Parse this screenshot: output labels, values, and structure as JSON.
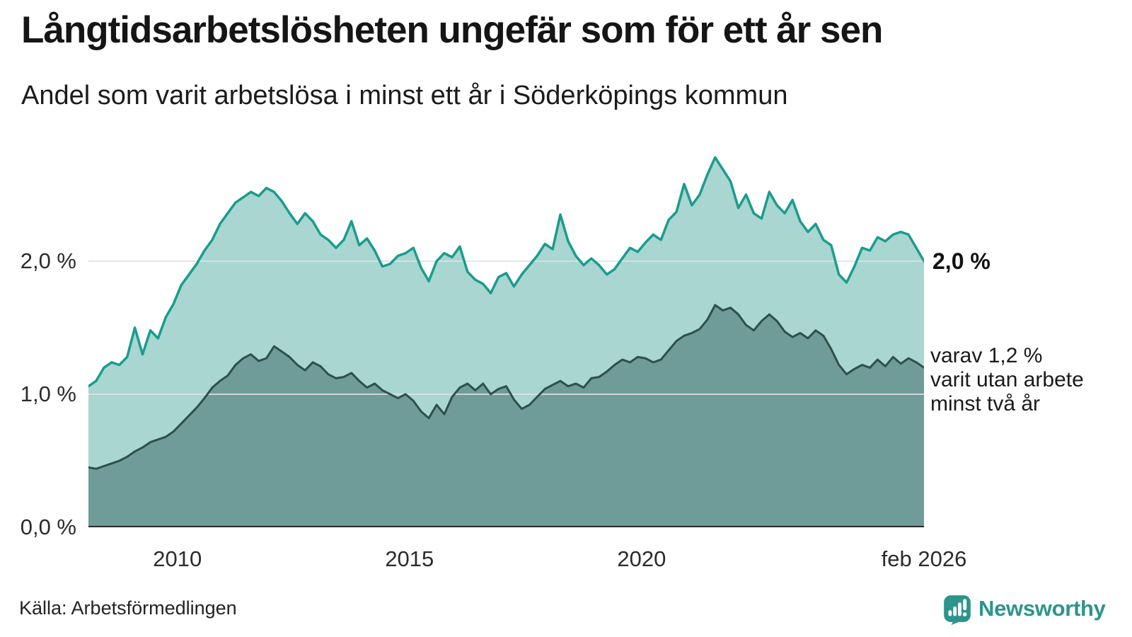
{
  "header": {
    "title": "Långtidsarbetslösheten ungefär som för ett år sen",
    "subtitle": "Andel som varit arbetslösa i minst ett år i Söderköpings kommun"
  },
  "y_axis": {
    "labels": [
      "2,0 %",
      "1,0 %",
      "0,0 %"
    ],
    "values": [
      2.0,
      1.0,
      0.0
    ]
  },
  "x_axis": {
    "ticks": [
      {
        "label": "2010",
        "month": 23
      },
      {
        "label": "2015",
        "month": 83
      },
      {
        "label": "2020",
        "month": 143
      },
      {
        "label": "feb 2026",
        "month": 216
      }
    ]
  },
  "annotations": {
    "series1_end_label": "2,0 %",
    "series2_lines": [
      "varav 1,2 %",
      "varit utan arbete",
      "minst två år"
    ]
  },
  "footer": {
    "source": "Källa: Arbetsförmedlingen",
    "logo_text": "Newsworthy"
  },
  "colors": {
    "series1_stroke": "#1a9c8f",
    "series1_fill": "#a9d6d0",
    "series2_stroke": "#2f4f4b",
    "series2_fill": "#6f9c98",
    "gridline": "#dfe2e4",
    "baseline": "#2b2b2b",
    "logo_teal": "#2d948c"
  },
  "chart_data": {
    "type": "area",
    "title": "Långtidsarbetslösheten ungefär som för ett år sen",
    "subtitle": "Andel som varit arbetslösa i minst ett år i Söderköpings kommun",
    "unit": "percent",
    "x_start": "2008-02",
    "x_end": "2026-02",
    "interval_months": 2,
    "total_months": 216,
    "ylim": [
      0,
      2.9
    ],
    "gridlines": [
      1.0,
      2.0
    ],
    "legend_position": "right-annotations",
    "series": [
      {
        "name": "Andel arbetslösa minst ett år",
        "end_label": "2,0 %",
        "end_value": 2.0,
        "stroke": "#1a9c8f",
        "fill": "#a9d6d0",
        "stroke_width": 3.5,
        "values": [
          1.06,
          1.1,
          1.2,
          1.24,
          1.22,
          1.28,
          1.5,
          1.3,
          1.48,
          1.42,
          1.58,
          1.68,
          1.82,
          1.9,
          1.98,
          2.08,
          2.16,
          2.28,
          2.36,
          2.44,
          2.48,
          2.52,
          2.49,
          2.55,
          2.52,
          2.45,
          2.36,
          2.28,
          2.36,
          2.3,
          2.2,
          2.16,
          2.1,
          2.16,
          2.3,
          2.12,
          2.17,
          2.08,
          1.96,
          1.98,
          2.04,
          2.06,
          2.1,
          1.95,
          1.85,
          2.0,
          2.06,
          2.03,
          2.11,
          1.92,
          1.86,
          1.83,
          1.76,
          1.88,
          1.91,
          1.81,
          1.9,
          1.97,
          2.04,
          2.13,
          2.09,
          2.35,
          2.15,
          2.04,
          1.97,
          2.02,
          1.97,
          1.9,
          1.94,
          2.02,
          2.1,
          2.07,
          2.14,
          2.2,
          2.16,
          2.31,
          2.37,
          2.58,
          2.42,
          2.5,
          2.65,
          2.78,
          2.69,
          2.6,
          2.4,
          2.5,
          2.36,
          2.32,
          2.52,
          2.42,
          2.36,
          2.46,
          2.3,
          2.22,
          2.28,
          2.16,
          2.12,
          1.9,
          1.84,
          1.96,
          2.1,
          2.08,
          2.18,
          2.15,
          2.2,
          2.22,
          2.2,
          2.1,
          2.0
        ]
      },
      {
        "name": "Andel arbetslösa minst två år",
        "end_label": "varav 1,2 % varit utan arbete minst två år",
        "end_value": 1.2,
        "stroke": "#2f4f4b",
        "fill": "#6f9c98",
        "stroke_width": 3,
        "values": [
          0.45,
          0.44,
          0.46,
          0.48,
          0.5,
          0.53,
          0.57,
          0.6,
          0.64,
          0.66,
          0.68,
          0.72,
          0.78,
          0.84,
          0.9,
          0.97,
          1.05,
          1.1,
          1.14,
          1.22,
          1.27,
          1.3,
          1.25,
          1.27,
          1.36,
          1.32,
          1.28,
          1.22,
          1.18,
          1.24,
          1.21,
          1.15,
          1.12,
          1.13,
          1.16,
          1.1,
          1.05,
          1.08,
          1.03,
          1.0,
          0.97,
          1.0,
          0.95,
          0.87,
          0.82,
          0.92,
          0.85,
          0.98,
          1.05,
          1.08,
          1.03,
          1.08,
          1.0,
          1.04,
          1.06,
          0.96,
          0.89,
          0.92,
          0.98,
          1.04,
          1.07,
          1.1,
          1.06,
          1.08,
          1.05,
          1.12,
          1.13,
          1.17,
          1.22,
          1.26,
          1.24,
          1.28,
          1.27,
          1.24,
          1.26,
          1.33,
          1.4,
          1.44,
          1.46,
          1.49,
          1.56,
          1.67,
          1.63,
          1.65,
          1.6,
          1.52,
          1.48,
          1.55,
          1.6,
          1.55,
          1.47,
          1.43,
          1.46,
          1.42,
          1.48,
          1.44,
          1.34,
          1.22,
          1.15,
          1.19,
          1.22,
          1.2,
          1.26,
          1.21,
          1.28,
          1.23,
          1.27,
          1.24,
          1.2
        ]
      }
    ]
  }
}
